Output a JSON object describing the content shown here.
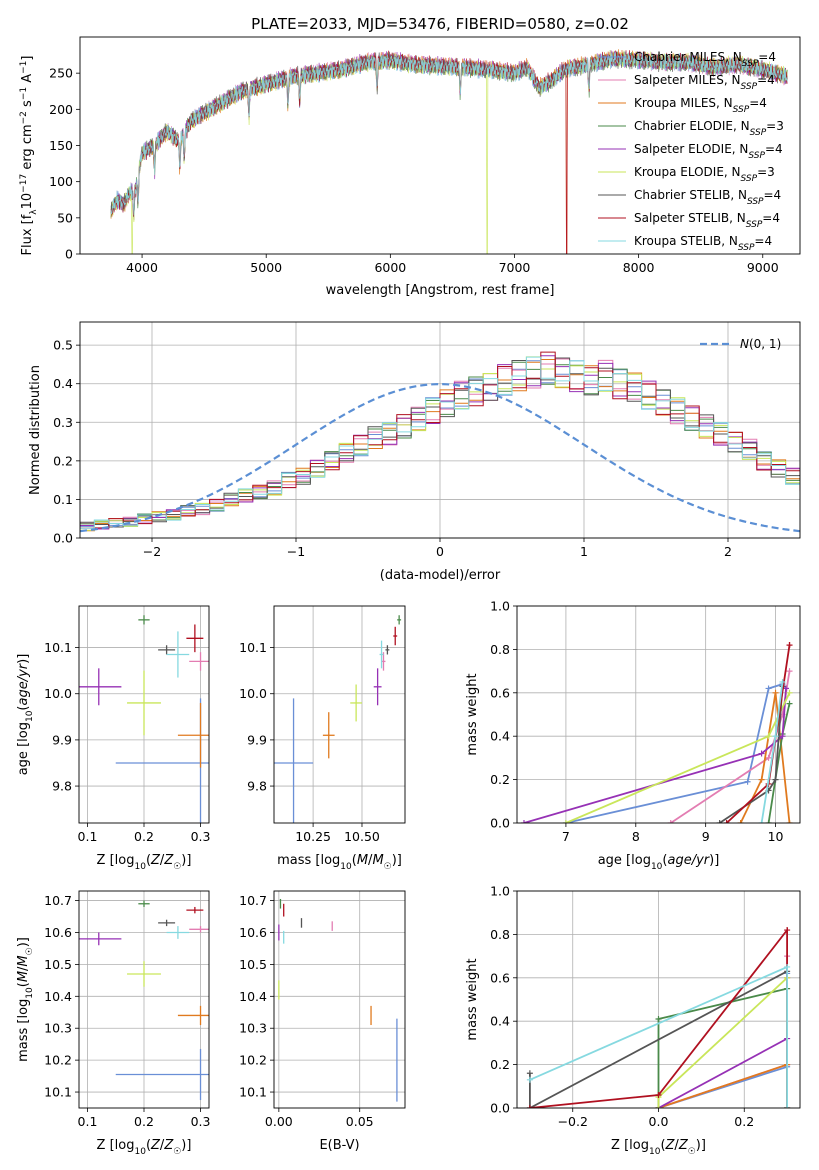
{
  "figure": {
    "title": "PLATE=2033, MJD=53476, FIBERID=0580, z=0.02"
  },
  "series_styles": [
    {
      "name": "Chabrier MILES, N_SSP=4",
      "color": "#6a8fd6"
    },
    {
      "name": "Salpeter MILES, N_SSP=4",
      "color": "#e37db2"
    },
    {
      "name": "Kroupa MILES, N_SSP=4",
      "color": "#e07a1f"
    },
    {
      "name": "Chabrier ELODIE, N_SSP=3",
      "color": "#4a8a4a"
    },
    {
      "name": "Salpeter ELODIE, N_SSP=4",
      "color": "#9631b5"
    },
    {
      "name": "Kroupa ELODIE, N_SSP=3",
      "color": "#c9e65a"
    },
    {
      "name": "Chabrier STELIB, N_SSP=4",
      "color": "#555555"
    },
    {
      "name": "Salpeter STELIB, N_SSP=4",
      "color": "#b01020"
    },
    {
      "name": "Kroupa STELIB, N_SSP=4",
      "color": "#86d9e0"
    }
  ],
  "chart_data": [
    {
      "id": "spectrum",
      "type": "line",
      "xlabel": "wavelength [Angstrom, rest frame]",
      "ylabel": "Flux [f_λ 10^-17 erg cm^-2 s^-1 A^-1]",
      "xlim": [
        3500,
        9300
      ],
      "ylim": [
        0,
        300
      ],
      "xticks": [
        4000,
        5000,
        6000,
        7000,
        8000,
        9000
      ],
      "yticks": [
        0,
        50,
        100,
        150,
        200,
        250
      ],
      "grid": false,
      "legend": "upper right",
      "continuum": {
        "x": [
          3750,
          3800,
          3850,
          3900,
          3950,
          4000,
          4100,
          4200,
          4300,
          4400,
          4500,
          4600,
          4800,
          5000,
          5200,
          5400,
          5600,
          5800,
          6000,
          6200,
          6400,
          6600,
          6800,
          7000,
          7100,
          7200,
          7300,
          7400,
          7600,
          7800,
          8000,
          8200,
          8400,
          8600,
          8800,
          9000,
          9200
        ],
        "y": [
          60,
          75,
          68,
          85,
          90,
          140,
          150,
          170,
          155,
          185,
          195,
          205,
          225,
          235,
          245,
          250,
          255,
          265,
          268,
          262,
          260,
          258,
          255,
          250,
          258,
          230,
          240,
          255,
          262,
          270,
          268,
          265,
          265,
          258,
          262,
          255,
          245
        ]
      },
      "dropouts": [
        {
          "series": "Kroupa ELODIE, N_SSP=3",
          "x": [
            3920,
            6780
          ]
        },
        {
          "series": "Salpeter STELIB, N_SSP=4",
          "x": [
            7420
          ]
        },
        {
          "series": "Kroupa MILES, N_SSP=4",
          "x": [
            7420
          ]
        }
      ]
    },
    {
      "id": "residuals",
      "type": "line",
      "subtype": "step histogram",
      "xlabel": "(data-model)/error",
      "ylabel": "Normed distribution",
      "xlim": [
        -2.5,
        2.5
      ],
      "ylim": [
        0,
        0.56
      ],
      "xticks": [
        -2,
        -1,
        0,
        1,
        2
      ],
      "yticks": [
        0.0,
        0.1,
        0.2,
        0.3,
        0.4,
        0.5
      ],
      "grid": true,
      "legend": "upper right",
      "reference_curve": {
        "name": "N(0,1)",
        "mean": 0,
        "sigma": 1
      },
      "bin_width": 0.1,
      "bin_start": -2.5,
      "base_values": [
        0.03,
        0.035,
        0.04,
        0.042,
        0.05,
        0.055,
        0.06,
        0.07,
        0.075,
        0.085,
        0.1,
        0.11,
        0.12,
        0.13,
        0.15,
        0.16,
        0.18,
        0.2,
        0.22,
        0.24,
        0.26,
        0.27,
        0.29,
        0.31,
        0.33,
        0.35,
        0.37,
        0.38,
        0.39,
        0.41,
        0.42,
        0.43,
        0.44,
        0.43,
        0.42,
        0.41,
        0.42,
        0.4,
        0.39,
        0.37,
        0.35,
        0.33,
        0.31,
        0.29,
        0.27,
        0.25,
        0.23,
        0.2,
        0.18,
        0.16,
        0.14,
        0.13,
        0.11,
        0.1,
        0.09,
        0.08,
        0.075,
        0.065,
        0.06,
        0.055,
        0.05,
        0.045,
        0.04,
        0.04,
        0.035,
        0.03,
        0.03,
        0.028,
        0.025,
        0.025
      ]
    },
    {
      "id": "age_vs_Z",
      "type": "scatter",
      "xlabel": "Z [log10(Z/Z☉)]",
      "ylabel": "age  [log10(age/yr)]",
      "xlim": [
        0.085,
        0.315
      ],
      "ylim": [
        9.72,
        10.19
      ],
      "xticks": [
        0.1,
        0.2,
        0.3
      ],
      "yticks": [
        9.8,
        9.9,
        10.0,
        10.1
      ],
      "grid": true,
      "points": [
        {
          "s": 0,
          "x": 0.3,
          "y": 9.85,
          "xerr": 0.15,
          "yerr": 0.14
        },
        {
          "s": 1,
          "x": 0.3,
          "y": 10.07,
          "xerr": 0.02,
          "yerr": 0.02
        },
        {
          "s": 2,
          "x": 0.3,
          "y": 9.91,
          "xerr": 0.04,
          "yerr": 0.07
        },
        {
          "s": 3,
          "x": 0.2,
          "y": 10.16,
          "xerr": 0.01,
          "yerr": 0.01
        },
        {
          "s": 4,
          "x": 0.12,
          "y": 10.015,
          "xerr": 0.04,
          "yerr": 0.04
        },
        {
          "s": 5,
          "x": 0.2,
          "y": 9.98,
          "xerr": 0.03,
          "yerr": 0.07
        },
        {
          "s": 6,
          "x": 0.24,
          "y": 10.095,
          "xerr": 0.015,
          "yerr": 0.01
        },
        {
          "s": 7,
          "x": 0.29,
          "y": 10.12,
          "xerr": 0.015,
          "yerr": 0.03
        },
        {
          "s": 8,
          "x": 0.26,
          "y": 10.085,
          "xerr": 0.02,
          "yerr": 0.05
        }
      ]
    },
    {
      "id": "age_vs_mass",
      "type": "scatter",
      "xlabel": "mass [log10(M/M☉)]",
      "ylabel": "",
      "xlim": [
        10.05,
        10.72
      ],
      "ylim": [
        9.72,
        10.19
      ],
      "xticks": [
        10.25,
        10.5
      ],
      "xticklabels": [
        "10.25",
        "10.50"
      ],
      "yticks": [
        9.8,
        9.9,
        10.0,
        10.1
      ],
      "grid": true,
      "points": [
        {
          "s": 0,
          "x": 10.15,
          "y": 9.85,
          "xerr": 0.1,
          "yerr": 0.14
        },
        {
          "s": 1,
          "x": 10.61,
          "y": 10.07,
          "xerr": 0.01,
          "yerr": 0.02
        },
        {
          "s": 2,
          "x": 10.33,
          "y": 9.91,
          "xerr": 0.03,
          "yerr": 0.05
        },
        {
          "s": 3,
          "x": 10.69,
          "y": 10.16,
          "xerr": 0.01,
          "yerr": 0.01
        },
        {
          "s": 4,
          "x": 10.58,
          "y": 10.015,
          "xerr": 0.02,
          "yerr": 0.04
        },
        {
          "s": 5,
          "x": 10.47,
          "y": 9.98,
          "xerr": 0.03,
          "yerr": 0.04
        },
        {
          "s": 6,
          "x": 10.63,
          "y": 10.095,
          "xerr": 0.01,
          "yerr": 0.01
        },
        {
          "s": 7,
          "x": 10.67,
          "y": 10.125,
          "xerr": 0.01,
          "yerr": 0.02
        },
        {
          "s": 8,
          "x": 10.6,
          "y": 10.085,
          "xerr": 0.01,
          "yerr": 0.03
        }
      ]
    },
    {
      "id": "weight_vs_age",
      "type": "line",
      "xlabel": "age  [log10(age/yr)]",
      "ylabel": "mass weight",
      "xlim": [
        6.3,
        10.35
      ],
      "ylim": [
        0,
        1.0
      ],
      "xticks": [
        7,
        8,
        9,
        10
      ],
      "yticks": [
        0.0,
        0.2,
        0.4,
        0.6,
        0.8,
        1.0
      ],
      "grid": true,
      "series": [
        {
          "s": 0,
          "x": [
            7.0,
            9.6,
            9.9,
            10.1,
            10.15
          ],
          "y": [
            0.0,
            0.19,
            0.62,
            0.64,
            0.62
          ]
        },
        {
          "s": 1,
          "x": [
            8.5,
            9.9,
            10.1,
            10.2
          ],
          "y": [
            0.0,
            0.3,
            0.5,
            0.7
          ]
        },
        {
          "s": 2,
          "x": [
            9.5,
            9.8,
            10.0,
            10.2
          ],
          "y": [
            0.0,
            0.2,
            0.6,
            0.0
          ]
        },
        {
          "s": 3,
          "x": [
            9.9,
            10.1,
            10.2
          ],
          "y": [
            0.0,
            0.41,
            0.55
          ]
        },
        {
          "s": 4,
          "x": [
            6.4,
            9.8,
            10.1,
            10.15
          ],
          "y": [
            0.0,
            0.32,
            0.4,
            0.62
          ]
        },
        {
          "s": 5,
          "x": [
            7.0,
            9.9,
            10.2
          ],
          "y": [
            0.0,
            0.4,
            0.6
          ]
        },
        {
          "s": 6,
          "x": [
            9.2,
            9.9,
            10.0,
            10.1
          ],
          "y": [
            0.0,
            0.15,
            0.2,
            0.63
          ]
        },
        {
          "s": 7,
          "x": [
            9.3,
            9.9,
            10.2,
            10.2
          ],
          "y": [
            0.0,
            0.18,
            0.82,
            0.82
          ]
        },
        {
          "s": 8,
          "x": [
            9.8,
            10.0,
            10.1
          ],
          "y": [
            0.0,
            0.4,
            0.65
          ]
        }
      ]
    },
    {
      "id": "mass_vs_Z",
      "type": "scatter",
      "xlabel": "Z [log10(Z/Z☉)]",
      "ylabel": "mass [log10(M/M☉)]",
      "xlim": [
        0.085,
        0.315
      ],
      "ylim": [
        10.05,
        10.73
      ],
      "xticks": [
        0.1,
        0.2,
        0.3
      ],
      "yticks": [
        10.1,
        10.2,
        10.3,
        10.4,
        10.5,
        10.6,
        10.7
      ],
      "grid": true,
      "points": [
        {
          "s": 0,
          "x": 0.3,
          "y": 10.155,
          "xerr": 0.15,
          "yerr": 0.08
        },
        {
          "s": 1,
          "x": 0.3,
          "y": 10.61,
          "xerr": 0.02,
          "yerr": 0.01
        },
        {
          "s": 2,
          "x": 0.3,
          "y": 10.34,
          "xerr": 0.04,
          "yerr": 0.03
        },
        {
          "s": 3,
          "x": 0.2,
          "y": 10.69,
          "xerr": 0.01,
          "yerr": 0.01
        },
        {
          "s": 4,
          "x": 0.12,
          "y": 10.58,
          "xerr": 0.04,
          "yerr": 0.02
        },
        {
          "s": 5,
          "x": 0.2,
          "y": 10.47,
          "xerr": 0.03,
          "yerr": 0.04
        },
        {
          "s": 6,
          "x": 0.24,
          "y": 10.63,
          "xerr": 0.015,
          "yerr": 0.01
        },
        {
          "s": 7,
          "x": 0.29,
          "y": 10.67,
          "xerr": 0.015,
          "yerr": 0.01
        },
        {
          "s": 8,
          "x": 0.26,
          "y": 10.6,
          "xerr": 0.02,
          "yerr": 0.02
        }
      ]
    },
    {
      "id": "mass_vs_EBV",
      "type": "scatter",
      "xlabel": "E(B-V)",
      "ylabel": "",
      "xlim": [
        -0.003,
        0.078
      ],
      "ylim": [
        10.05,
        10.73
      ],
      "xticks": [
        0.0,
        0.05
      ],
      "xticklabels": [
        "0.00",
        "0.05"
      ],
      "yticks": [
        10.1,
        10.2,
        10.3,
        10.4,
        10.5,
        10.6,
        10.7
      ],
      "grid": true,
      "points": [
        {
          "s": 0,
          "x": 0.073,
          "y": 10.2,
          "xerr": 0.0,
          "yerr": 0.13
        },
        {
          "s": 1,
          "x": 0.033,
          "y": 10.62,
          "xerr": 0.0,
          "yerr": 0.015
        },
        {
          "s": 2,
          "x": 0.057,
          "y": 10.34,
          "xerr": 0.0,
          "yerr": 0.03
        },
        {
          "s": 3,
          "x": 0.001,
          "y": 10.69,
          "xerr": 0.0,
          "yerr": 0.015
        },
        {
          "s": 4,
          "x": 0.0,
          "y": 10.6,
          "xerr": 0.0,
          "yerr": 0.025
        },
        {
          "s": 5,
          "x": 0.0,
          "y": 10.42,
          "xerr": 0.0,
          "yerr": 0.03
        },
        {
          "s": 6,
          "x": 0.014,
          "y": 10.63,
          "xerr": 0.0,
          "yerr": 0.015
        },
        {
          "s": 7,
          "x": 0.003,
          "y": 10.67,
          "xerr": 0.0,
          "yerr": 0.02
        },
        {
          "s": 8,
          "x": 0.003,
          "y": 10.585,
          "xerr": 0.0,
          "yerr": 0.02
        }
      ]
    },
    {
      "id": "weight_vs_Z",
      "type": "line",
      "xlabel": "Z [log10(Z/Z☉)]",
      "ylabel": "mass weight",
      "xlim": [
        -0.33,
        0.33
      ],
      "ylim": [
        0,
        1.0
      ],
      "xticks": [
        -0.2,
        0.0,
        0.2
      ],
      "xticklabels": [
        "−0.2",
        "0.0",
        "0.2"
      ],
      "yticks": [
        0.0,
        0.2,
        0.4,
        0.6,
        0.8,
        1.0
      ],
      "grid": true,
      "series": [
        {
          "s": 0,
          "x": [
            0.0,
            0.3,
            0.3
          ],
          "y": [
            0.0,
            0.19,
            0.62
          ]
        },
        {
          "s": 1,
          "x": [
            0.0,
            0.3,
            0.3
          ],
          "y": [
            0.0,
            0.2,
            0.7
          ]
        },
        {
          "s": 2,
          "x": [
            0.0,
            0.3,
            0.3
          ],
          "y": [
            0.0,
            0.2,
            0.6
          ]
        },
        {
          "s": 3,
          "x": [
            0.0,
            0.0,
            0.3,
            0.3
          ],
          "y": [
            0.0,
            0.41,
            0.55,
            0.0
          ]
        },
        {
          "s": 4,
          "x": [
            0.0,
            0.3,
            0.3
          ],
          "y": [
            0.0,
            0.32,
            0.0
          ]
        },
        {
          "s": 5,
          "x": [
            0.0,
            0.0,
            0.3,
            0.3
          ],
          "y": [
            0.0,
            0.05,
            0.6,
            0.0
          ]
        },
        {
          "s": 6,
          "x": [
            -0.3,
            -0.3,
            0.3
          ],
          "y": [
            0.16,
            0.0,
            0.63
          ]
        },
        {
          "s": 7,
          "x": [
            -0.3,
            0.0,
            0.3,
            0.3
          ],
          "y": [
            0.0,
            0.06,
            0.82,
            0.0
          ]
        },
        {
          "s": 8,
          "x": [
            -0.3,
            0.3,
            0.3
          ],
          "y": [
            0.13,
            0.65,
            0.0
          ]
        }
      ]
    }
  ]
}
